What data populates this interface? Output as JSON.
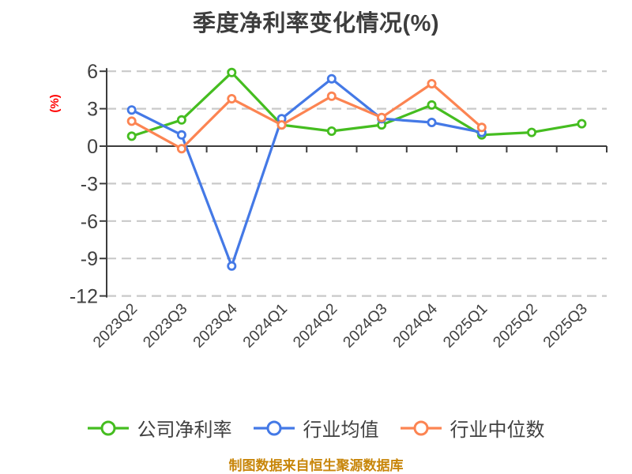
{
  "chart_data": {
    "type": "line",
    "title": "季度净利率变化情况(%)",
    "ylabel": "(%)",
    "xlabel": "",
    "categories": [
      "2023Q2",
      "2023Q3",
      "2023Q4",
      "2024Q1",
      "2024Q2",
      "2024Q3",
      "2024Q4",
      "2025Q1",
      "2025Q2",
      "2025Q3"
    ],
    "series": [
      {
        "name": "公司净利率",
        "color": "#45bd20",
        "values": [
          0.8,
          2.1,
          5.9,
          1.7,
          1.2,
          1.7,
          3.3,
          0.9,
          1.1,
          1.8
        ]
      },
      {
        "name": "行业均值",
        "color": "#4479e6",
        "values": [
          2.9,
          0.9,
          -9.6,
          2.2,
          5.4,
          2.2,
          1.9,
          1.1,
          null,
          null
        ]
      },
      {
        "name": "行业中位数",
        "color": "#fc8452",
        "values": [
          2.0,
          -0.2,
          3.8,
          1.7,
          4.0,
          2.3,
          5.0,
          1.5,
          null,
          null
        ]
      }
    ],
    "yticks": [
      6,
      3,
      0,
      -3,
      -6,
      -9,
      -12
    ],
    "ylim": [
      -12,
      6
    ],
    "grid": "horizontal-dashed",
    "legend_position": "bottom",
    "marker": "circle-white-fill",
    "source_note": "制图数据来自恒生聚源数据库"
  },
  "theme": {
    "background": "#ffffff",
    "title_color": "#3d3d3d",
    "axis_color": "#3d3d3d",
    "grid_color": "#c9c9c9",
    "tick_label_color": "#404040",
    "legend_text_color": "#404040",
    "ylabel_color": "#ff0000",
    "source_color": "#c8860a",
    "marker_fill": "#ffffff"
  }
}
